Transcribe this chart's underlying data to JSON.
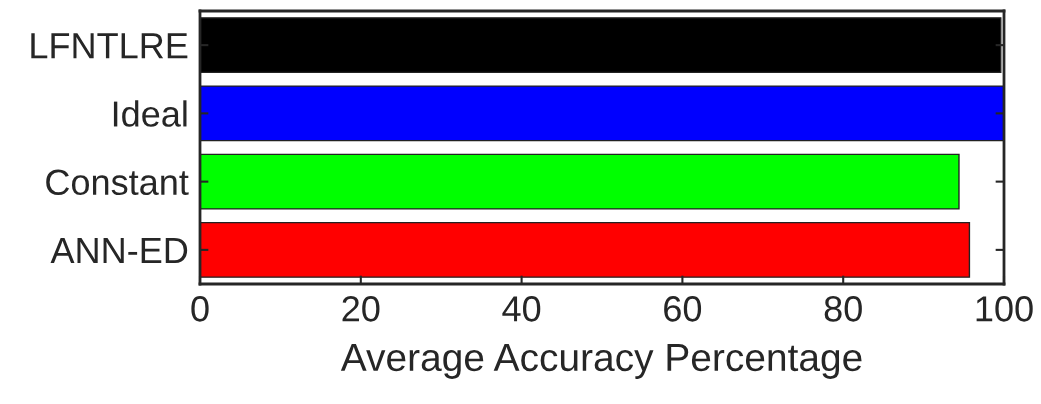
{
  "chart_data": {
    "type": "bar",
    "orientation": "horizontal",
    "xlabel": "Average Accuracy Percentage",
    "categories": [
      "LFNTLRE",
      "Ideal",
      "Constant",
      "ANN-ED"
    ],
    "values": [
      99.6,
      100,
      94.4,
      95.7
    ],
    "colors": [
      "#000000",
      "#0000ff",
      "#00ff00",
      "#ff0000"
    ],
    "xlim": [
      0,
      100
    ],
    "xticks": [
      0,
      20,
      40,
      60,
      80,
      100
    ],
    "grid": false
  }
}
